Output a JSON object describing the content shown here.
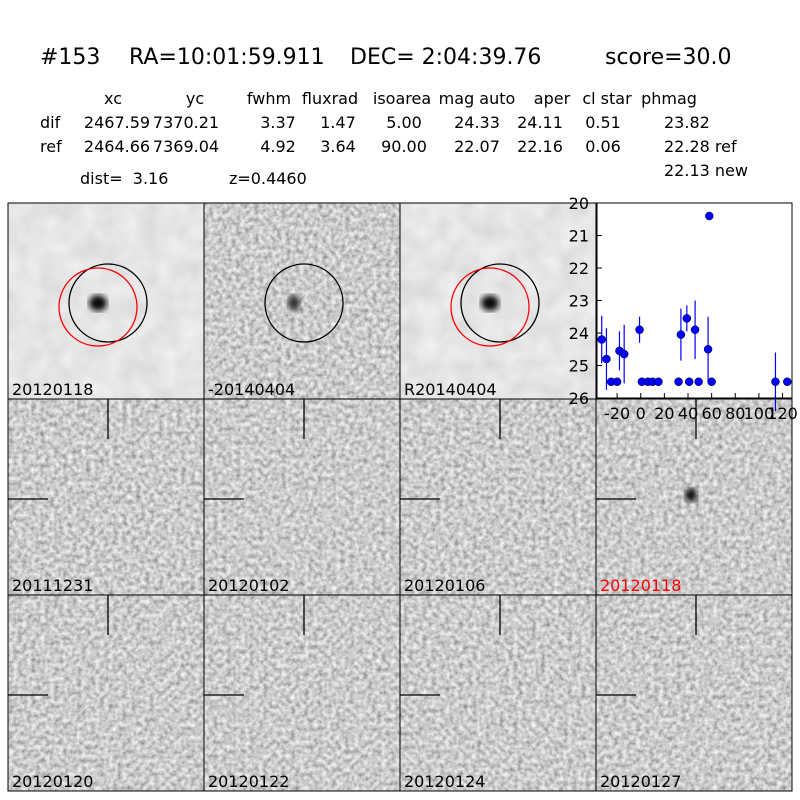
{
  "header": {
    "id": "#153",
    "ra": "RA=10:01:59.911",
    "dec": "DEC= 2:04:39.76",
    "score": "score=30.0"
  },
  "table": {
    "columns": [
      "xc",
      "yc",
      "fwhm",
      "fluxrad",
      "isoarea",
      "mag auto",
      "aper",
      "cl star",
      "phmag"
    ],
    "rows": [
      [
        "dif",
        "2467.59",
        "7370.21",
        "3.37",
        "1.47",
        "5.00",
        "24.33",
        "24.11",
        "0.51",
        "23.82"
      ],
      [
        "ref",
        "2464.66",
        "7369.04",
        "4.92",
        "3.64",
        "90.00",
        "22.07",
        "22.16",
        "0.06",
        "22.28 ref"
      ]
    ],
    "extra": "22.13 new"
  },
  "info": {
    "dist": "dist=  3.16",
    "z": "z=0.4460"
  },
  "panels": [
    {
      "label": "20120118"
    },
    {
      "label": "-20140404"
    },
    {
      "label": "R20140404"
    },
    {
      "label": "20111231"
    },
    {
      "label": "20120102"
    },
    {
      "label": "20120106"
    },
    {
      "label": "20120118",
      "color": "#ff0000"
    },
    {
      "label": "20120120"
    },
    {
      "label": "20120122"
    },
    {
      "label": "20120124"
    },
    {
      "label": "20120127"
    }
  ],
  "chart_data": {
    "type": "scatter",
    "color": "#0000ff",
    "x": [
      -33,
      -29,
      -25,
      -20,
      -18,
      -14,
      -1,
      1,
      6,
      10,
      15,
      32,
      34,
      39,
      41,
      46,
      49,
      57,
      58,
      60,
      114,
      124
    ],
    "values": [
      24.2,
      24.8,
      25.5,
      25.5,
      24.55,
      24.65,
      23.9,
      25.5,
      25.5,
      25.5,
      25.5,
      25.5,
      24.05,
      23.55,
      25.5,
      23.9,
      25.5,
      24.5,
      20.4,
      25.5,
      25.5,
      25.5
    ],
    "errors": [
      0.73,
      0.95,
      null,
      null,
      0.6,
      0.9,
      0.4,
      null,
      null,
      null,
      null,
      null,
      0.8,
      0.4,
      null,
      0.9,
      null,
      1.0,
      null,
      null,
      0.9,
      null
    ],
    "xlim": [
      -37,
      128
    ],
    "ylim": [
      26,
      20
    ],
    "xticks": [
      -20,
      0,
      20,
      40,
      60,
      80,
      100,
      120
    ],
    "yticks": [
      20,
      21,
      22,
      23,
      24,
      25,
      26
    ]
  }
}
